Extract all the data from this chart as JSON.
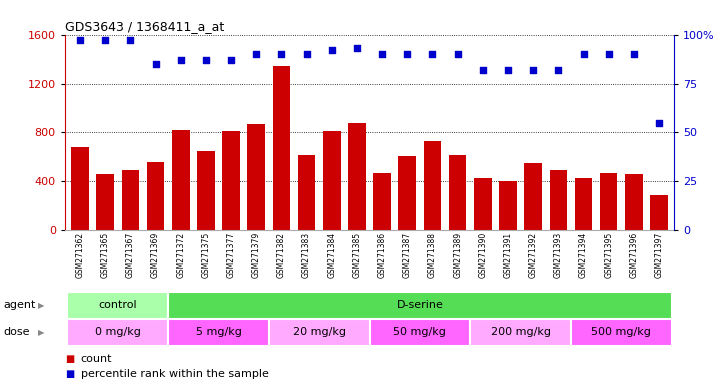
{
  "title": "GDS3643 / 1368411_a_at",
  "samples": [
    "GSM271362",
    "GSM271365",
    "GSM271367",
    "GSM271369",
    "GSM271372",
    "GSM271375",
    "GSM271377",
    "GSM271379",
    "GSM271382",
    "GSM271383",
    "GSM271384",
    "GSM271385",
    "GSM271386",
    "GSM271387",
    "GSM271388",
    "GSM271389",
    "GSM271390",
    "GSM271391",
    "GSM271392",
    "GSM271393",
    "GSM271394",
    "GSM271395",
    "GSM271396",
    "GSM271397"
  ],
  "counts": [
    680,
    460,
    490,
    560,
    820,
    650,
    810,
    870,
    1340,
    620,
    810,
    880,
    470,
    610,
    730,
    620,
    430,
    400,
    550,
    490,
    430,
    470,
    460,
    290
  ],
  "percentile_ranks": [
    97,
    97,
    97,
    85,
    87,
    87,
    87,
    90,
    90,
    90,
    92,
    93,
    90,
    90,
    90,
    90,
    82,
    82,
    82,
    82,
    90,
    90,
    90,
    55
  ],
  "bar_color": "#cc0000",
  "dot_color": "#0000cc",
  "ylim_left": [
    0,
    1600
  ],
  "ylim_right": [
    0,
    100
  ],
  "yticks_left": [
    0,
    400,
    800,
    1200,
    1600
  ],
  "yticks_right": [
    0,
    25,
    50,
    75,
    100
  ],
  "agent_groups": [
    {
      "label": "control",
      "color": "#aaffaa",
      "start": 0,
      "end": 4
    },
    {
      "label": "D-serine",
      "color": "#55dd55",
      "start": 4,
      "end": 24
    }
  ],
  "dose_groups": [
    {
      "label": "0 mg/kg",
      "color": "#ffaaff",
      "start": 0,
      "end": 4
    },
    {
      "label": "5 mg/kg",
      "color": "#ff66ff",
      "start": 4,
      "end": 8
    },
    {
      "label": "20 mg/kg",
      "color": "#ffaaff",
      "start": 8,
      "end": 12
    },
    {
      "label": "50 mg/kg",
      "color": "#ff66ff",
      "start": 12,
      "end": 16
    },
    {
      "label": "200 mg/kg",
      "color": "#ffaaff",
      "start": 16,
      "end": 20
    },
    {
      "label": "500 mg/kg",
      "color": "#ff66ff",
      "start": 20,
      "end": 24
    }
  ],
  "background_color": "#ffffff",
  "tick_label_color_left": "#cc0000",
  "tick_label_color_right": "#0000cc"
}
